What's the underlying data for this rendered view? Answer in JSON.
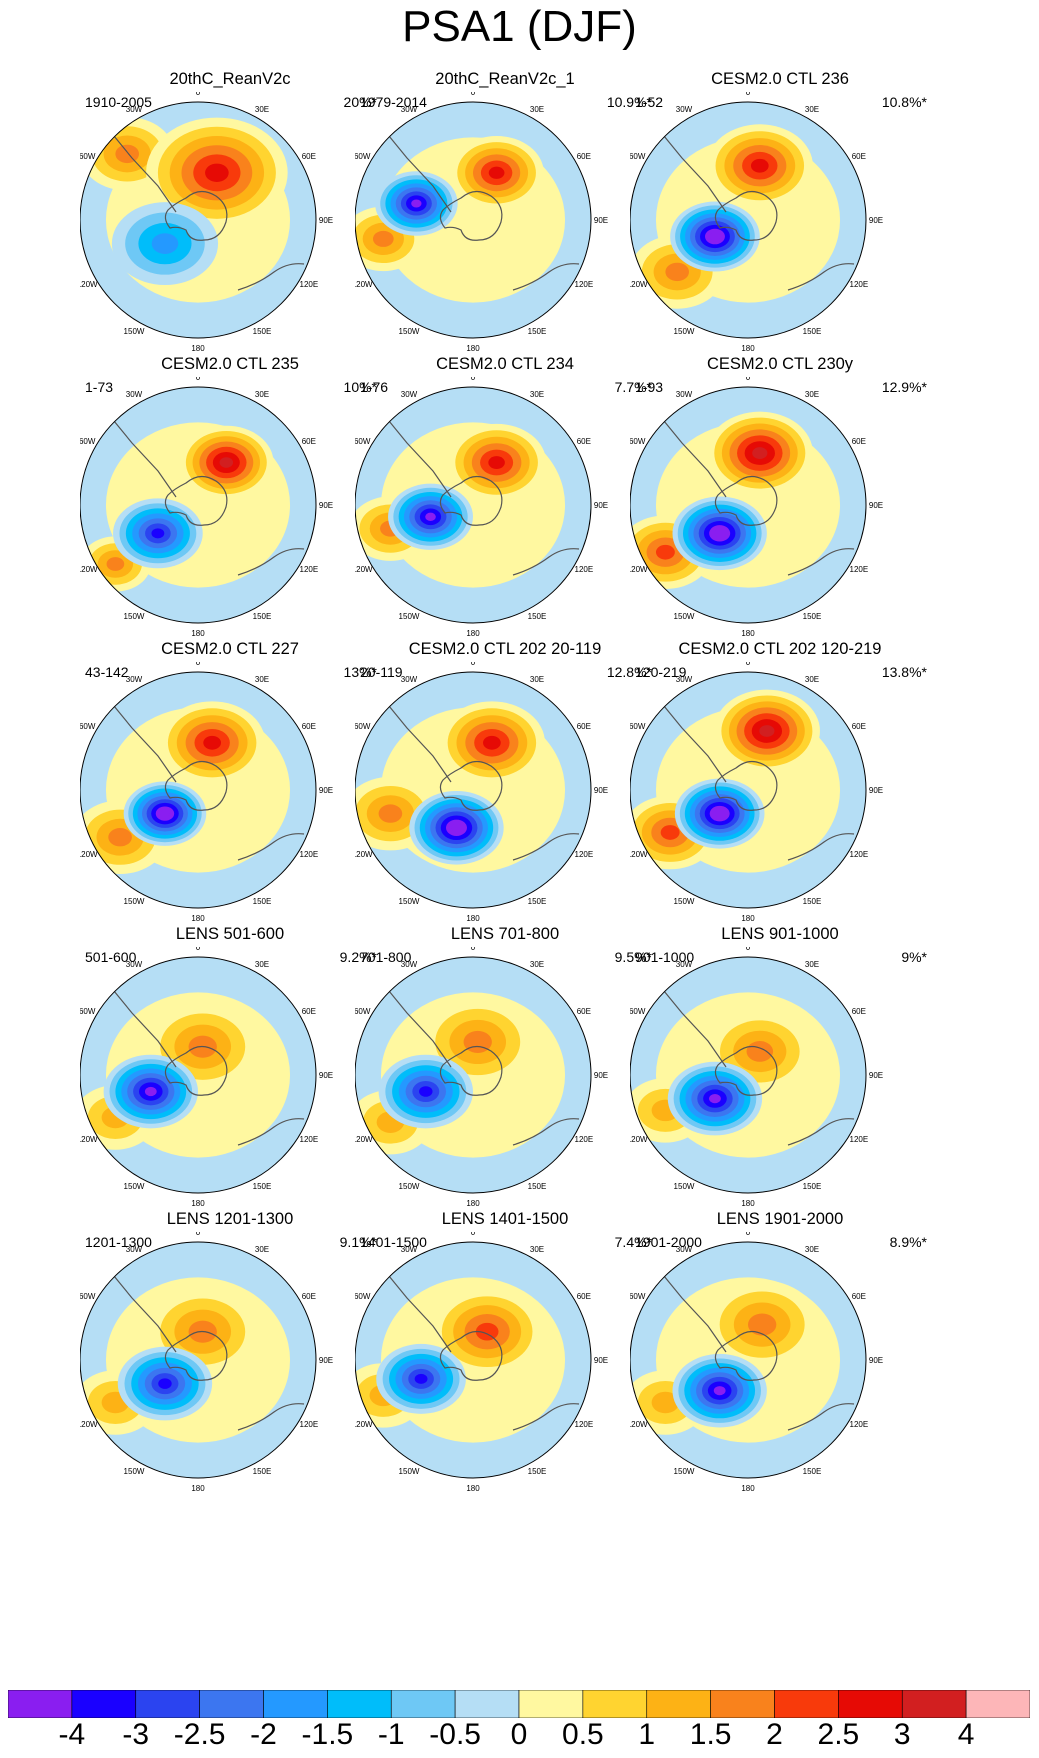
{
  "title": "PSA1 (DJF)",
  "chart_data": {
    "type": "contour-map",
    "projection": "south-polar-stereographic",
    "season": "DJF",
    "mode": "PSA1",
    "longitude_labels": [
      "0",
      "30E",
      "60E",
      "90E",
      "120E",
      "150E",
      "180",
      "150W",
      "120W",
      "90W",
      "60W",
      "30W"
    ],
    "colorbar": {
      "colors": [
        "#8a1ef0",
        "#1a00ff",
        "#2b44f0",
        "#3c76f0",
        "#2499ff",
        "#00bdfa",
        "#6ec8f5",
        "#b5def5",
        "#fff8a0",
        "#ffd430",
        "#fdb215",
        "#f9821c",
        "#f83a0b",
        "#e60a05",
        "#d21f20",
        "#fdb6b8"
      ],
      "levels": [
        "-4",
        "-3",
        "-2.5",
        "-2",
        "-1.5",
        "-1",
        "-0.5",
        "0",
        "0.5",
        "1",
        "1.5",
        "2",
        "2.5",
        "3",
        "4"
      ]
    },
    "panels": [
      {
        "title": "20thC_ReanV2c",
        "years": "1910-2005",
        "variance": "20%*",
        "neg": [
          0.36,
          0.6,
          4.0,
          0.45
        ],
        "pos_main": [
          0.58,
          0.3,
          6.0,
          0.6
        ],
        "pos_side": [
          0.2,
          0.22,
          4.0,
          0.4
        ]
      },
      {
        "title": "20thC_ReanV2c_1",
        "years": "1979-2014",
        "variance": "10.9%*",
        "neg": [
          0.26,
          0.43,
          8.0,
          0.35
        ],
        "pos_main": [
          0.6,
          0.3,
          6.0,
          0.4
        ],
        "pos_side": [
          0.12,
          0.58,
          4.0,
          0.35
        ]
      },
      {
        "title": "CESM2.0 CTL 236",
        "years": "1-52",
        "variance": "10.8%*",
        "neg": [
          0.36,
          0.57,
          9.0,
          0.38
        ],
        "pos_main": [
          0.55,
          0.27,
          6.0,
          0.45
        ],
        "pos_side": [
          0.2,
          0.72,
          4.0,
          0.4
        ]
      },
      {
        "title": "CESM2.0 CTL 235",
        "years": "1-73",
        "variance": "10%*",
        "neg": [
          0.33,
          0.62,
          7.0,
          0.38
        ],
        "pos_main": [
          0.62,
          0.32,
          7.0,
          0.4
        ],
        "pos_side": [
          0.15,
          0.75,
          4.0,
          0.3
        ]
      },
      {
        "title": "CESM2.0 CTL 234",
        "years": "1-76",
        "variance": "7.7%*",
        "neg": [
          0.32,
          0.55,
          8.0,
          0.36
        ],
        "pos_main": [
          0.6,
          0.32,
          6.0,
          0.42
        ],
        "pos_side": [
          0.15,
          0.6,
          4.0,
          0.35
        ]
      },
      {
        "title": "CESM2.0 CTL 230y",
        "years": "1-93",
        "variance": "12.9%*",
        "neg": [
          0.38,
          0.62,
          9.0,
          0.4
        ],
        "pos_main": [
          0.55,
          0.28,
          7.0,
          0.45
        ],
        "pos_side": [
          0.15,
          0.7,
          5.0,
          0.4
        ]
      },
      {
        "title": "CESM2.0 CTL 227",
        "years": "43-142",
        "variance": "13%*",
        "neg": [
          0.36,
          0.6,
          9.0,
          0.35
        ],
        "pos_main": [
          0.56,
          0.3,
          6.0,
          0.45
        ],
        "pos_side": [
          0.17,
          0.7,
          4.0,
          0.4
        ]
      },
      {
        "title": "CESM2.0 CTL 202 20-119",
        "years": "20-119",
        "variance": "12.8%*",
        "neg": [
          0.43,
          0.66,
          9.0,
          0.4
        ],
        "pos_main": [
          0.58,
          0.3,
          6.0,
          0.45
        ],
        "pos_side": [
          0.15,
          0.6,
          4.0,
          0.4
        ]
      },
      {
        "title": "CESM2.0 CTL 202 120-219",
        "years": "120-219",
        "variance": "13.8%*",
        "neg": [
          0.38,
          0.6,
          9.0,
          0.38
        ],
        "pos_main": [
          0.58,
          0.25,
          7.0,
          0.45
        ],
        "pos_side": [
          0.17,
          0.68,
          5.0,
          0.4
        ]
      },
      {
        "title": "LENS 501-600",
        "years": "501-600",
        "variance": "9.2%*",
        "neg": [
          0.3,
          0.57,
          8.0,
          0.4
        ],
        "pos_main": [
          0.52,
          0.38,
          4.0,
          0.48
        ],
        "pos_side": [
          0.15,
          0.68,
          3.0,
          0.35
        ]
      },
      {
        "title": "LENS 701-800",
        "years": "701-800",
        "variance": "9.5%*",
        "neg": [
          0.3,
          0.57,
          7.0,
          0.4
        ],
        "pos_main": [
          0.52,
          0.36,
          4.0,
          0.48
        ],
        "pos_side": [
          0.15,
          0.7,
          3.0,
          0.35
        ]
      },
      {
        "title": "LENS 901-1000",
        "years": "901-1000",
        "variance": "9%*",
        "neg": [
          0.36,
          0.6,
          8.0,
          0.4
        ],
        "pos_main": [
          0.55,
          0.4,
          4.0,
          0.45
        ],
        "pos_side": [
          0.15,
          0.65,
          3.0,
          0.35
        ]
      },
      {
        "title": "LENS 1201-1300",
        "years": "1201-1300",
        "variance": "9.1%*",
        "neg": [
          0.36,
          0.6,
          7.0,
          0.4
        ],
        "pos_main": [
          0.52,
          0.38,
          4.0,
          0.48
        ],
        "pos_side": [
          0.15,
          0.68,
          3.0,
          0.35
        ]
      },
      {
        "title": "LENS 1401-1500",
        "years": "1401-1500",
        "variance": "7.4%*",
        "neg": [
          0.28,
          0.58,
          7.0,
          0.38
        ],
        "pos_main": [
          0.56,
          0.38,
          5.0,
          0.48
        ],
        "pos_side": [
          0.12,
          0.65,
          3.0,
          0.35
        ]
      },
      {
        "title": "LENS 1901-2000",
        "years": "1901-2000",
        "variance": "8.9%*",
        "neg": [
          0.38,
          0.63,
          8.0,
          0.4
        ],
        "pos_main": [
          0.56,
          0.35,
          4.0,
          0.48
        ],
        "pos_side": [
          0.15,
          0.68,
          3.0,
          0.35
        ]
      }
    ]
  }
}
